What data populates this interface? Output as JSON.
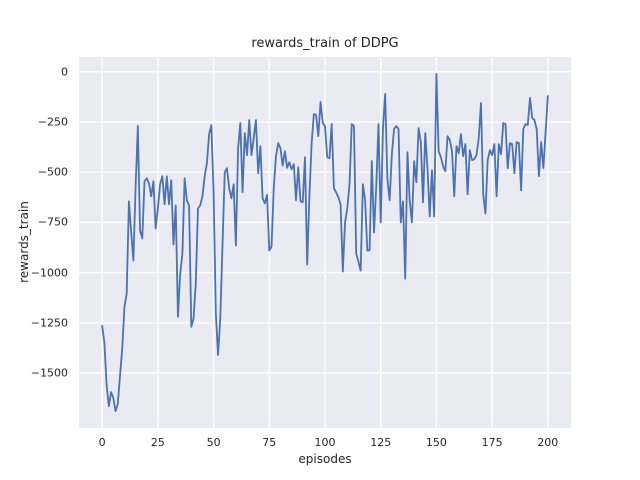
{
  "chart_data": {
    "type": "line",
    "title": "rewards_train of DDPG",
    "xlabel": "episodes",
    "ylabel": "rewards_train",
    "legend": "none",
    "grid": true,
    "x_start": 0,
    "x_step": 1,
    "xlim": [
      -10.4,
      210.4
    ],
    "ylim": [
      -1774,
      74
    ],
    "xticks": [
      0,
      25,
      50,
      75,
      100,
      125,
      150,
      175,
      200
    ],
    "xtick_labels": [
      "0",
      "25",
      "50",
      "75",
      "100",
      "125",
      "150",
      "175",
      "200"
    ],
    "yticks": [
      0,
      -250,
      -500,
      -750,
      -1000,
      -1250,
      -1500
    ],
    "ytick_labels": [
      "0",
      "−250",
      "−500",
      "−750",
      "−1000",
      "−1250",
      "−1500"
    ],
    "line_color": "#4c72b0",
    "background_color": "#eaeaf2",
    "grid_color": "#ffffff",
    "text_color": "#262626",
    "figure_background": "#ffffff",
    "series_name": "rewards_train",
    "values": [
      -1265,
      -1350,
      -1560,
      -1665,
      -1595,
      -1625,
      -1690,
      -1655,
      -1515,
      -1380,
      -1170,
      -1105,
      -645,
      -795,
      -940,
      -575,
      -270,
      -790,
      -830,
      -545,
      -530,
      -555,
      -620,
      -545,
      -780,
      -680,
      -560,
      -520,
      -660,
      -520,
      -660,
      -540,
      -860,
      -665,
      -1220,
      -1010,
      -905,
      -530,
      -640,
      -665,
      -1270,
      -1230,
      -1055,
      -680,
      -665,
      -620,
      -520,
      -455,
      -310,
      -265,
      -600,
      -1200,
      -1410,
      -1230,
      -865,
      -500,
      -480,
      -580,
      -630,
      -560,
      -865,
      -380,
      -255,
      -600,
      -305,
      -415,
      -240,
      -415,
      -330,
      -240,
      -505,
      -370,
      -630,
      -655,
      -613,
      -890,
      -870,
      -580,
      -420,
      -355,
      -380,
      -467,
      -395,
      -478,
      -450,
      -485,
      -460,
      -640,
      -475,
      -645,
      -650,
      -425,
      -960,
      -620,
      -355,
      -210,
      -215,
      -320,
      -150,
      -255,
      -270,
      -425,
      -430,
      -260,
      -580,
      -600,
      -625,
      -660,
      -995,
      -750,
      -680,
      -560,
      -260,
      -270,
      -905,
      -945,
      -990,
      -560,
      -640,
      -890,
      -890,
      -445,
      -800,
      -570,
      -260,
      -750,
      -285,
      -110,
      -535,
      -640,
      -410,
      -285,
      -270,
      -285,
      -750,
      -645,
      -1030,
      -400,
      -640,
      -750,
      -445,
      -550,
      -280,
      -350,
      -650,
      -305,
      -485,
      -720,
      -490,
      -720,
      -10,
      -395,
      -425,
      -470,
      -495,
      -320,
      -340,
      -395,
      -620,
      -370,
      -405,
      -310,
      -420,
      -360,
      -610,
      -390,
      -440,
      -435,
      -415,
      -330,
      -155,
      -610,
      -705,
      -440,
      -390,
      -415,
      -360,
      -620,
      -360,
      -410,
      -255,
      -260,
      -480,
      -355,
      -360,
      -505,
      -350,
      -355,
      -590,
      -285,
      -260,
      -265,
      -130,
      -230,
      -240,
      -285,
      -520,
      -350,
      -480,
      -300,
      -120
    ]
  }
}
